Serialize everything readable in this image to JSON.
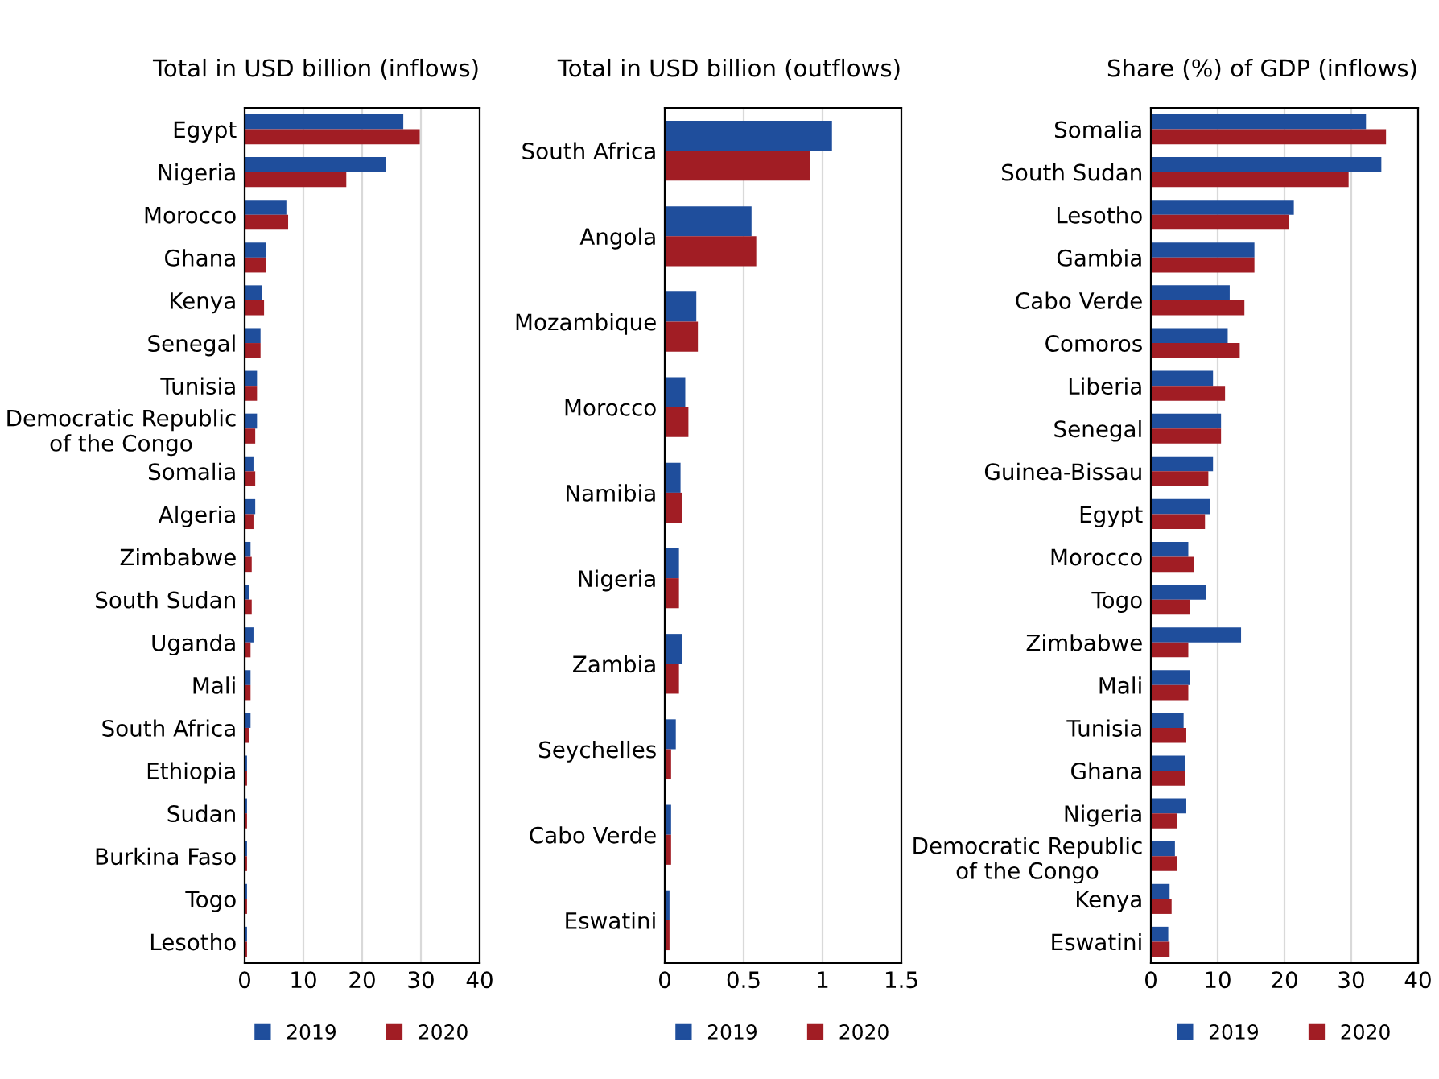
{
  "chart_data": [
    {
      "type": "bar",
      "orientation": "horizontal",
      "title": "Total in USD billion (inflows)",
      "categories": [
        "Egypt",
        "Nigeria",
        "Morocco",
        "Ghana",
        "Kenya",
        "Senegal",
        "Tunisia",
        "Democratic Republic\nof the Congo",
        "Somalia",
        "Algeria",
        "Zimbabwe",
        "South Sudan",
        "Uganda",
        "Mali",
        "South Africa",
        "Ethiopia",
        "Sudan",
        "Burkina Faso",
        "Togo",
        "Lesotho"
      ],
      "series": [
        {
          "name": "2019",
          "color": "#1f4e9c",
          "values": [
            27,
            24,
            7.1,
            3.6,
            3.0,
            2.7,
            2.1,
            2.1,
            1.5,
            1.8,
            1.0,
            0.7,
            1.5,
            1.0,
            1.0,
            0.4,
            0.4,
            0.4,
            0.4,
            0.4
          ]
        },
        {
          "name": "2020",
          "color": "#a11d24",
          "values": [
            29.8,
            17.3,
            7.4,
            3.6,
            3.3,
            2.7,
            2.1,
            1.8,
            1.8,
            1.5,
            1.2,
            1.2,
            1.0,
            1.0,
            0.7,
            0.4,
            0.4,
            0.4,
            0.4,
            0.4
          ]
        }
      ],
      "xlim": [
        0,
        40
      ],
      "xticks": [
        0,
        10,
        20,
        30,
        40
      ],
      "grid": "x",
      "legend": "bottom"
    },
    {
      "type": "bar",
      "orientation": "horizontal",
      "title": "Total in USD billion (outflows)",
      "categories": [
        "South Africa",
        "Angola",
        "Mozambique",
        "Morocco",
        "Namibia",
        "Nigeria",
        "Zambia",
        "Seychelles",
        "Cabo Verde",
        "Eswatini"
      ],
      "series": [
        {
          "name": "2019",
          "color": "#1f4e9c",
          "values": [
            1.06,
            0.55,
            0.2,
            0.13,
            0.1,
            0.09,
            0.11,
            0.07,
            0.04,
            0.03
          ]
        },
        {
          "name": "2020",
          "color": "#a11d24",
          "values": [
            0.92,
            0.58,
            0.21,
            0.15,
            0.11,
            0.09,
            0.09,
            0.04,
            0.04,
            0.03
          ]
        }
      ],
      "xlim": [
        0,
        1.5
      ],
      "xticks": [
        0,
        0.5,
        1,
        1.5
      ],
      "grid": "x",
      "legend": "bottom"
    },
    {
      "type": "bar",
      "orientation": "horizontal",
      "title": "Share (%) of GDP (inflows)",
      "categories": [
        "Somalia",
        "South Sudan",
        "Lesotho",
        "Gambia",
        "Cabo Verde",
        "Comoros",
        "Liberia",
        "Senegal",
        "Guinea-Bissau",
        "Egypt",
        "Morocco",
        "Togo",
        "Zimbabwe",
        "Mali",
        "Tunisia",
        "Ghana",
        "Nigeria",
        "Democratic Republic\nof the Congo",
        "Kenya",
        "Eswatini"
      ],
      "series": [
        {
          "name": "2019",
          "color": "#1f4e9c",
          "values": [
            32.2,
            34.5,
            21.4,
            15.5,
            11.8,
            11.5,
            9.3,
            10.5,
            9.3,
            8.8,
            5.6,
            8.3,
            13.5,
            5.8,
            4.9,
            5.1,
            5.3,
            3.6,
            2.8,
            2.6
          ]
        },
        {
          "name": "2020",
          "color": "#a11d24",
          "values": [
            35.2,
            29.6,
            20.7,
            15.5,
            14.0,
            13.3,
            11.1,
            10.5,
            8.6,
            8.1,
            6.5,
            5.8,
            5.6,
            5.6,
            5.3,
            5.1,
            3.9,
            3.9,
            3.1,
            2.8
          ]
        }
      ],
      "xlim": [
        0,
        40
      ],
      "xticks": [
        0,
        10,
        20,
        30,
        40
      ],
      "grid": "x",
      "legend": "bottom"
    }
  ]
}
